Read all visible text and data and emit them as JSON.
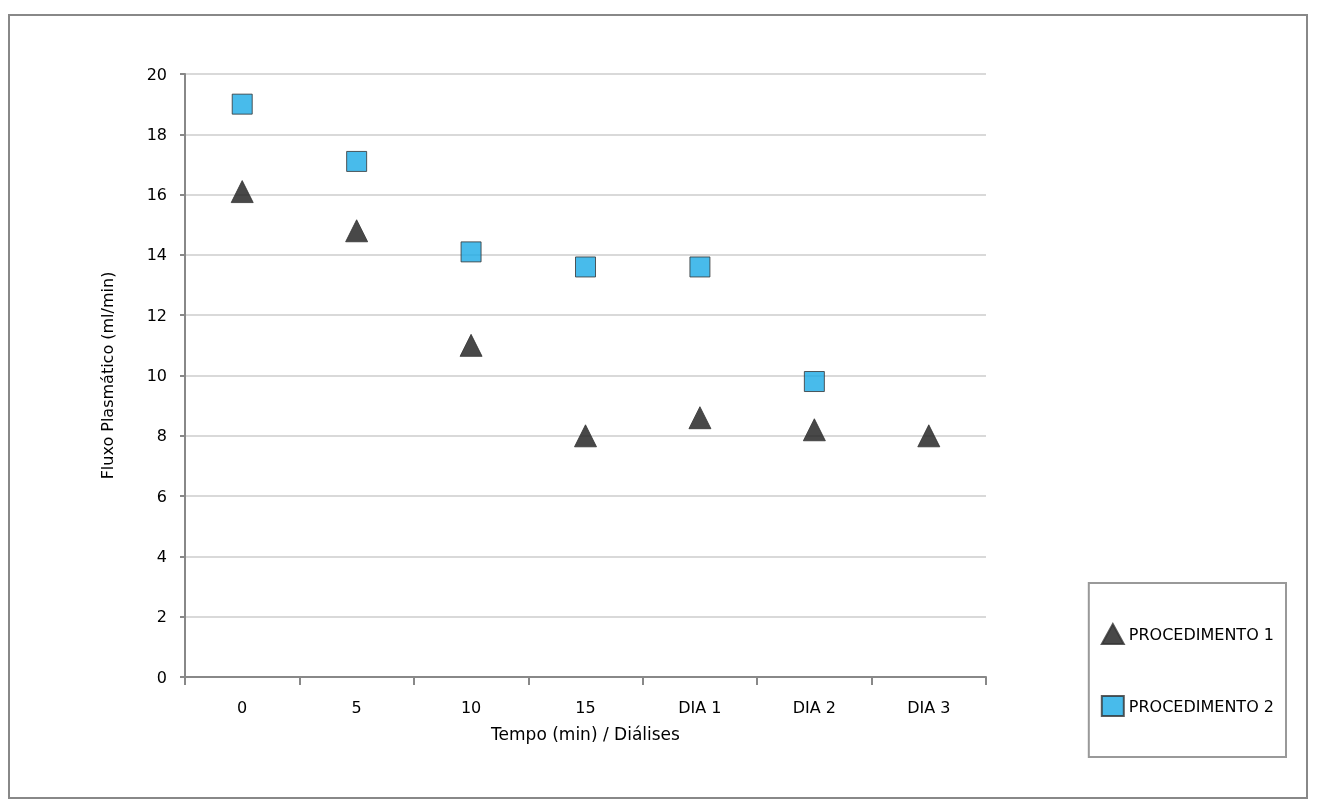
{
  "chart_data": {
    "type": "scatter",
    "xlabel": "Tempo (min) / Diálises",
    "ylabel": "Fluxo Plasmático (ml/min)",
    "categories": [
      "0",
      "5",
      "10",
      "15",
      "DIA 1",
      "DIA 2",
      "DIA 3"
    ],
    "series": [
      {
        "name": "PROCEDIMENTO 1",
        "color": "#1a1a1a",
        "marker": "triangle",
        "values": [
          16.1,
          14.8,
          11,
          8,
          8.6,
          8.2,
          8
        ]
      },
      {
        "name": "PROCEDIMENTO 2",
        "color": "#1aaae6",
        "marker": "square",
        "values": [
          19,
          17.1,
          14.1,
          13.6,
          13.6,
          9.8,
          null
        ]
      }
    ],
    "ylim": [
      0,
      20
    ],
    "yticks": [
      0,
      2,
      4,
      6,
      8,
      10,
      12,
      14,
      16,
      18,
      20
    ],
    "grid": "y",
    "legend": "bottom right"
  }
}
